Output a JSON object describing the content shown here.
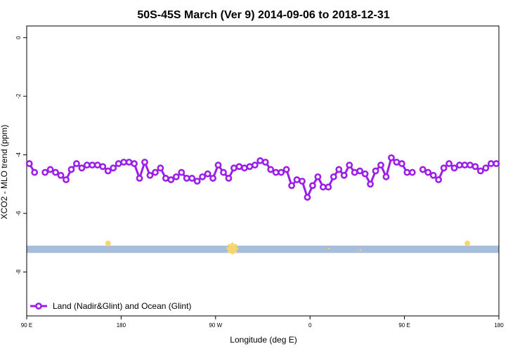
{
  "chart_data": {
    "type": "line",
    "title": "50S-45S March (Ver 9)   2014-09-06 to 2018-12-31",
    "xlabel": "Longitude (deg E)",
    "ylabel": "XCO2 - MLO trend (ppm)",
    "x_ticks": [
      {
        "value": 90,
        "label": "90 E"
      },
      {
        "value": 180,
        "label": "180"
      },
      {
        "value": 270,
        "label": "90 W"
      },
      {
        "value": 360,
        "label": "0"
      },
      {
        "value": 450,
        "label": "90 E"
      },
      {
        "value": 540,
        "label": "180"
      }
    ],
    "y_ticks": [
      {
        "value": 0,
        "label": "0"
      },
      {
        "value": -2,
        "label": "-2"
      },
      {
        "value": -4,
        "label": "-4"
      },
      {
        "value": -6,
        "label": "-6"
      },
      {
        "value": -8,
        "label": "-8"
      }
    ],
    "xlim": [
      90,
      540
    ],
    "ylim": [
      -9.5,
      0.4
    ],
    "grid": false,
    "legend_position": "bottom-left",
    "band": {
      "y_from": -7.35,
      "y_to": -7.1,
      "color": "#a6bddb"
    },
    "band_markers": [
      {
        "x": 167.5,
        "y": -7.02,
        "size": "small"
      },
      {
        "x": 286,
        "y": -7.2,
        "size": "large"
      },
      {
        "x": 510,
        "y": -7.02,
        "size": "small"
      },
      {
        "x": 378,
        "y": -7.2,
        "size": "tiny"
      },
      {
        "x": 408,
        "y": -7.25,
        "size": "tiny"
      }
    ],
    "band_marker_color": "#f7d568",
    "series": [
      {
        "name": "Land (Nadir&Glint) and Ocean (Glint)",
        "color": "#9b1fe8",
        "x": [
          92.5,
          97.5,
          107.5,
          112.5,
          117.5,
          122.5,
          127.5,
          132.5,
          137.5,
          142.5,
          147.5,
          152.5,
          157.5,
          162.5,
          167.5,
          172.5,
          177.5,
          182.5,
          187.5,
          192.5,
          197.5,
          202.5,
          207.5,
          212.5,
          217.5,
          222.5,
          227.5,
          232.5,
          237.5,
          242.5,
          247.5,
          252.5,
          257.5,
          262.5,
          267.5,
          272.5,
          277.5,
          282.5,
          287.5,
          292.5,
          297.5,
          302.5,
          307.5,
          312.5,
          317.5,
          322.5,
          327.5,
          332.5,
          337.5,
          342.5,
          347.5,
          352.5,
          357.5,
          362.5,
          367.5,
          372.5,
          377.5,
          382.5,
          387.5,
          392.5,
          397.5,
          402.5,
          407.5,
          412.5,
          417.5,
          422.5,
          427.5,
          432.5,
          437.5,
          442.5,
          447.5,
          452.5,
          457.5,
          467.5,
          472.5,
          477.5,
          482.5,
          487.5,
          492.5,
          497.5,
          502.5,
          507.5,
          512.5,
          517.5,
          522.5,
          527.5,
          532.5,
          537.5
        ],
        "y": [
          -4.3,
          -4.6,
          -4.6,
          -4.5,
          -4.6,
          -4.7,
          -4.85,
          -4.5,
          -4.3,
          -4.45,
          -4.35,
          -4.35,
          -4.35,
          -4.4,
          -4.55,
          -4.45,
          -4.3,
          -4.25,
          -4.25,
          -4.3,
          -4.8,
          -4.25,
          -4.7,
          -4.6,
          -4.45,
          -4.8,
          -4.85,
          -4.75,
          -4.6,
          -4.8,
          -4.8,
          -4.9,
          -4.75,
          -4.65,
          -4.8,
          -4.35,
          -4.6,
          -4.8,
          -4.45,
          -4.4,
          -4.45,
          -4.4,
          -4.35,
          -4.2,
          -4.25,
          -4.5,
          -4.6,
          -4.6,
          -4.5,
          -5.05,
          -4.85,
          -4.9,
          -5.45,
          -5.05,
          -4.75,
          -5.1,
          -5.1,
          -4.75,
          -4.5,
          -4.7,
          -4.35,
          -4.6,
          -4.55,
          -4.65,
          -5.0,
          -4.55,
          -4.35,
          -4.75,
          -4.1,
          -4.25,
          -4.3,
          -4.6,
          -4.6,
          -4.5,
          -4.6,
          -4.7,
          -4.85,
          -4.45,
          -4.3,
          -4.45,
          -4.35,
          -4.35,
          -4.35,
          -4.4,
          -4.55,
          -4.45,
          -4.3,
          -4.3
        ]
      }
    ]
  }
}
